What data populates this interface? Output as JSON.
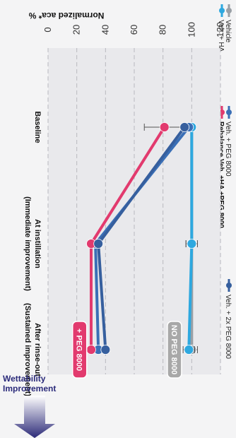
{
  "chart_data": {
    "type": "line",
    "ylabel": "Normalized aca* %",
    "ylim": [
      0,
      120
    ],
    "yticks": [
      0,
      20,
      40,
      60,
      80,
      100,
      120
    ],
    "categories": [
      [
        "Baseline"
      ],
      [
        "At instillation",
        "(Immediate improvement)"
      ],
      [
        "After rinse-out",
        "(Sustained improvement)"
      ]
    ],
    "series": [
      {
        "name": "Vehicle",
        "color": "#9aa0a6",
        "values": [
          100,
          100,
          100
        ],
        "error": [
          0,
          4,
          4
        ]
      },
      {
        "name": "Veh. + HA",
        "color": "#2ea8df",
        "values": [
          100,
          100,
          98
        ],
        "error": [
          0,
          4,
          4
        ]
      },
      {
        "name": "Veh. + PEG 8000",
        "color": "#3a6fb6",
        "values": [
          98,
          33,
          35
        ],
        "error": [
          0,
          0,
          0
        ]
      },
      {
        "name": "Rebalance Veh. +HA +PEG 8000",
        "color": "#e23a6e",
        "values": [
          81,
          30,
          30
        ],
        "error": [
          14,
          0,
          0
        ]
      },
      {
        "name": "Veh. + 2x PEG 8000",
        "color": "#365f9e",
        "values": [
          95,
          35,
          40
        ],
        "error": [
          0,
          0,
          0
        ]
      }
    ],
    "annotations": [
      {
        "text": "+ PEG 8000",
        "color": "#e23a6e"
      },
      {
        "text": "NO PEG 8000",
        "color": "#a8a8a8"
      }
    ],
    "arrow_label": [
      "Wettability",
      "Improvement"
    ],
    "grid": true,
    "legend_position": "top"
  }
}
